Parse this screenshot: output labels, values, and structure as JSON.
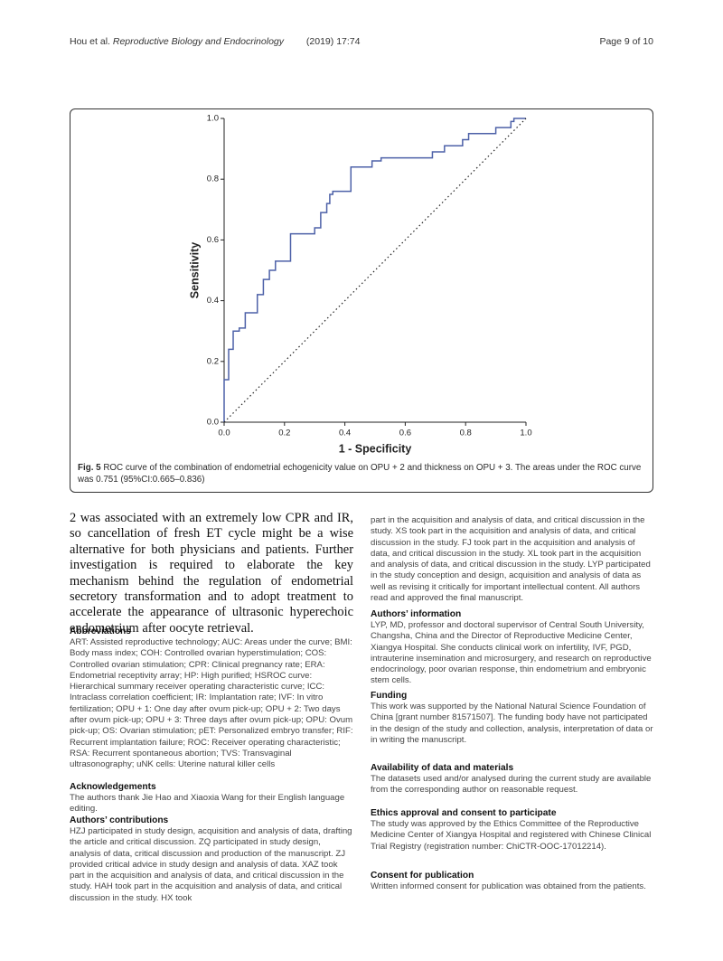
{
  "header": {
    "authors": "Hou et al.",
    "journal": "Reproductive Biology and Endocrinology",
    "citation": "(2019) 17:74",
    "page": "Page 9 of 10"
  },
  "chart_data": {
    "type": "line",
    "xlabel": "1 - Specificity",
    "ylabel": "Sensitivity",
    "xlim": [
      0,
      1
    ],
    "ylim": [
      0,
      1
    ],
    "xticks": [
      {
        "value": 0,
        "label": "0.0"
      },
      0.2,
      0.4,
      0.6,
      0.8,
      {
        "value": 1,
        "label": "1.0"
      }
    ],
    "yticks": [
      {
        "value": 0,
        "label": "0.0"
      },
      0.2,
      0.4,
      0.6,
      0.8,
      {
        "value": 1,
        "label": "1.0"
      }
    ],
    "grid": false,
    "series": [
      {
        "color": "#4d61a8",
        "dash": false,
        "x": [
          0,
          0,
          0.015,
          0.015,
          0.03,
          0.03,
          0.05,
          0.05,
          0.07,
          0.07,
          0.11,
          0.11,
          0.13,
          0.13,
          0.15,
          0.15,
          0.17,
          0.17,
          0.22,
          0.22,
          0.3,
          0.3,
          0.32,
          0.32,
          0.34,
          0.34,
          0.35,
          0.35,
          0.36,
          0.36,
          0.42,
          0.42,
          0.49,
          0.49,
          0.52,
          0.52,
          0.69,
          0.69,
          0.73,
          0.73,
          0.79,
          0.79,
          0.81,
          0.81,
          0.9,
          0.9,
          0.95,
          0.95,
          0.96,
          0.96,
          1
        ],
        "values": [
          0,
          0.14,
          0.14,
          0.24,
          0.24,
          0.3,
          0.3,
          0.31,
          0.31,
          0.36,
          0.36,
          0.42,
          0.42,
          0.47,
          0.47,
          0.5,
          0.5,
          0.53,
          0.53,
          0.62,
          0.62,
          0.64,
          0.64,
          0.69,
          0.69,
          0.72,
          0.72,
          0.75,
          0.75,
          0.76,
          0.76,
          0.84,
          0.84,
          0.86,
          0.86,
          0.87,
          0.87,
          0.89,
          0.89,
          0.91,
          0.91,
          0.93,
          0.93,
          0.95,
          0.95,
          0.97,
          0.97,
          0.99,
          0.99,
          1,
          1
        ]
      },
      {
        "color": "#222222",
        "dash": true,
        "x": [
          0,
          1
        ],
        "values": [
          0,
          1
        ]
      }
    ]
  },
  "figure": {
    "label": "Fig. 5",
    "caption": "ROC curve of the combination of endometrial echogenicity value on OPU + 2 and thickness on OPU + 3. The areas under the ROC curve was 0.751 (95%CI:0.665–0.836)"
  },
  "body": {
    "paragraph": "2 was associated with an extremely low CPR and IR, so cancellation of fresh ET cycle might be a wise alternative for both physicians and patients. Further investigation is required to elaborate the key mechanism behind the regulation of endometrial secretory transformation and to adopt treatment to accelerate the appearance of ultrasonic hyperechoic endometrium after oocyte retrieval."
  },
  "sections": {
    "abbreviations": {
      "heading": "Abbreviations",
      "text": "ART: Assisted reproductive technology; AUC: Areas under the curve; BMI: Body mass index; COH: Controlled ovarian hyperstimulation; COS: Controlled ovarian stimulation; CPR: Clinical pregnancy rate; ERA: Endometrial receptivity array; HP: High purified; HSROC curve: Hierarchical summary receiver operating characteristic curve; ICC: Intraclass correlation coefficient; IR: Implantation rate; IVF: In vitro fertilization; OPU + 1: One day after ovum pick-up; OPU + 2: Two days after ovum pick-up; OPU + 3: Three days after ovum pick-up; OPU: Ovum pick-up; OS: Ovarian stimulation; pET: Personalized embryo transfer; RIF: Recurrent implantation failure; ROC: Receiver operating characteristic; RSA: Recurrent spontaneous abortion; TVS: Transvaginal ultrasonography; uNK cells: Uterine natural killer cells"
    },
    "acknowledgements": {
      "heading": "Acknowledgements",
      "text": "The authors thank Jie Hao and Xiaoxia Wang for their English language editing."
    },
    "contributions": {
      "heading": "Authors’ contributions",
      "text": "HZJ participated in study design, acquisition and analysis of data, drafting the article and critical discussion. ZQ participated in study design, analysis of data, critical discussion and production of the manuscript. ZJ provided critical advice in study design and analysis of data. XAZ took part in the acquisition and analysis of data, and critical discussion in the study. HAH took part in the acquisition and analysis of data, and critical discussion in the study. HX took",
      "continued": "part in the acquisition and analysis of data, and critical discussion in the study. XS took part in the acquisition and analysis of data, and critical discussion in the study. FJ took part in the acquisition and analysis of data, and critical discussion in the study. XL took part in the acquisition and analysis of data, and critical discussion in the study. LYP participated in the study conception and design, acquisition and analysis of data as well as revising it critically for important intellectual content. All authors read and approved the final manuscript."
    },
    "information": {
      "heading": "Authors’ information",
      "text": "LYP, MD, professor and doctoral supervisor of Central South University, Changsha, China and the Director of Reproductive Medicine Center, Xiangya Hospital. She conducts clinical work on infertility, IVF, PGD, intrauterine insemination and microsurgery, and research on reproductive endocrinology, poor ovarian response, thin endometrium and embryonic stem cells."
    },
    "funding": {
      "heading": "Funding",
      "text": "This work was supported by the National Natural Science Foundation of China [grant number 81571507]. The funding body have not participated in the design of the study and collection, analysis, interpretation of data or in writing the manuscript."
    },
    "availability": {
      "heading": "Availability of data and materials",
      "text": "The datasets used and/or analysed during the current study are available from the corresponding author on reasonable request."
    },
    "ethics": {
      "heading": "Ethics approval and consent to participate",
      "text": "The study was approved by the Ethics Committee of the Reproductive Medicine Center of Xiangya Hospital and registered with Chinese Clinical Trial Registry (registration number: ChiCTR-OOC-17012214)."
    },
    "consent": {
      "heading": "Consent for publication",
      "text": "Written informed consent for publication was obtained from the patients."
    }
  }
}
